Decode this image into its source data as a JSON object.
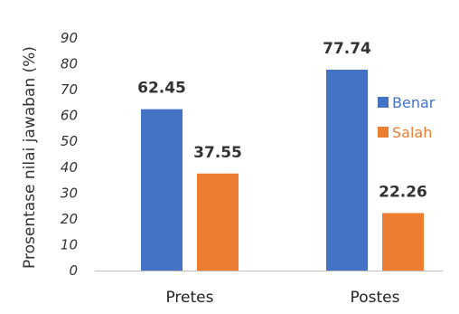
{
  "chart_data": {
    "type": "bar",
    "title": "",
    "xlabel": "",
    "ylabel": "Prosentase nilai jawaban (%)",
    "categories": [
      "Pretes",
      "Postes"
    ],
    "series": [
      {
        "name": "Benar",
        "values": [
          62.45,
          77.74
        ],
        "color": "#4472C4"
      },
      {
        "name": "Salah",
        "values": [
          37.55,
          22.26
        ],
        "color": "#ED7D31"
      }
    ],
    "ylim": [
      0,
      90
    ],
    "yticks": [
      0,
      10,
      20,
      30,
      40,
      50,
      60,
      70,
      80,
      90
    ],
    "data_labels": [
      "62.45",
      "77.74",
      "37.55",
      "22.26"
    ],
    "grid": false,
    "legend_position": "right"
  }
}
